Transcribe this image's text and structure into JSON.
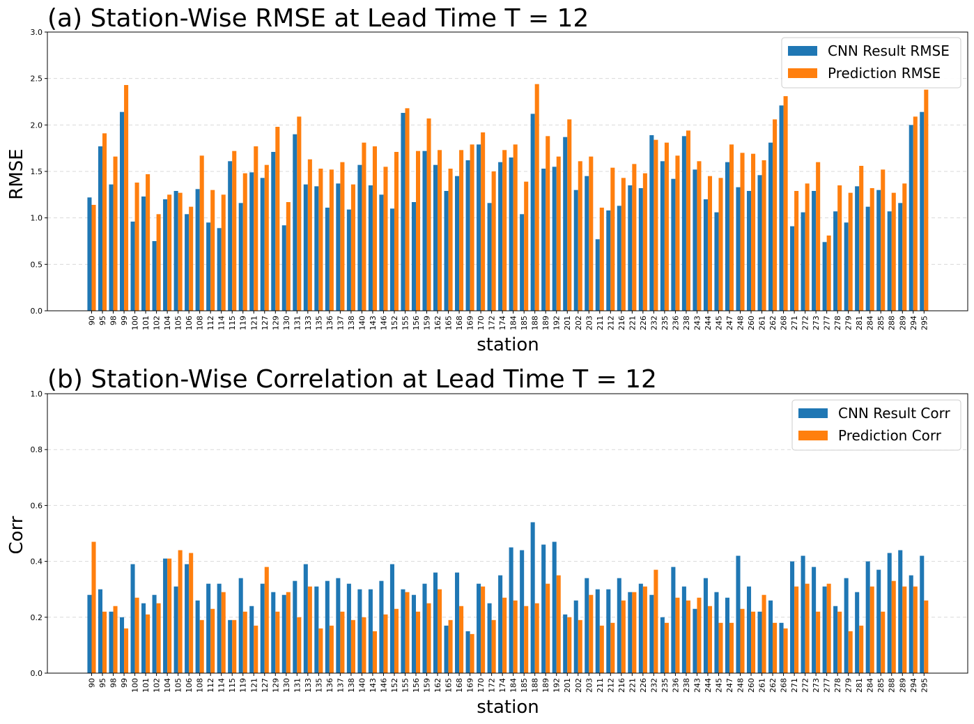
{
  "colors": {
    "cnn": "#1f77b4",
    "pred": "#ff7f0e",
    "grid": "#d9d9d9"
  },
  "chart_data": [
    {
      "type": "bar",
      "title": "(a) Station-Wise RMSE at Lead Time T = 12",
      "xlabel": "station",
      "ylabel": "RMSE",
      "ylim": [
        0,
        3.0
      ],
      "yticks": [
        "0.0",
        "0.5",
        "1.0",
        "1.5",
        "2.0",
        "2.5",
        "3.0"
      ],
      "grid": "y dashed",
      "legend_position": "top-right",
      "categories": [
        "90",
        "95",
        "98",
        "99",
        "100",
        "101",
        "102",
        "104",
        "105",
        "106",
        "108",
        "112",
        "114",
        "115",
        "119",
        "121",
        "127",
        "129",
        "130",
        "131",
        "133",
        "135",
        "136",
        "137",
        "138",
        "140",
        "143",
        "146",
        "152",
        "155",
        "156",
        "159",
        "162",
        "165",
        "168",
        "169",
        "170",
        "172",
        "174",
        "184",
        "185",
        "188",
        "189",
        "192",
        "201",
        "202",
        "203",
        "211",
        "212",
        "216",
        "221",
        "226",
        "232",
        "235",
        "236",
        "238",
        "243",
        "244",
        "245",
        "247",
        "248",
        "260",
        "261",
        "262",
        "268",
        "271",
        "272",
        "273",
        "277",
        "278",
        "279",
        "281",
        "284",
        "285",
        "288",
        "289",
        "294",
        "295"
      ],
      "series": [
        {
          "name": "CNN Result RMSE",
          "values": [
            1.22,
            1.77,
            1.36,
            2.14,
            0.96,
            1.23,
            0.75,
            1.2,
            1.29,
            1.04,
            1.31,
            0.95,
            0.89,
            1.61,
            1.16,
            1.49,
            1.43,
            1.71,
            0.92,
            1.9,
            1.36,
            1.34,
            1.11,
            1.37,
            1.09,
            1.57,
            1.35,
            1.25,
            1.1,
            2.13,
            1.17,
            1.72,
            1.57,
            1.29,
            1.45,
            1.62,
            1.79,
            1.16,
            1.6,
            1.65,
            1.04,
            2.12,
            1.53,
            1.55,
            1.87,
            1.3,
            1.45,
            0.77,
            1.08,
            1.13,
            1.35,
            1.32,
            1.89,
            1.61,
            1.42,
            1.88,
            1.52,
            1.2,
            1.06,
            1.6,
            1.33,
            1.29,
            1.46,
            1.81,
            2.21,
            0.91,
            1.06,
            1.29,
            0.74,
            1.07,
            0.95,
            1.34,
            1.12,
            1.3,
            1.07,
            1.16,
            2.0,
            2.14
          ]
        },
        {
          "name": "Prediction RMSE",
          "values": [
            1.14,
            1.91,
            1.66,
            2.43,
            1.38,
            1.47,
            1.04,
            1.25,
            1.27,
            1.12,
            1.67,
            1.3,
            1.25,
            1.72,
            1.48,
            1.77,
            1.57,
            1.98,
            1.17,
            2.09,
            1.63,
            1.53,
            1.52,
            1.6,
            1.36,
            1.81,
            1.77,
            1.55,
            1.71,
            2.18,
            1.72,
            2.07,
            1.73,
            1.53,
            1.73,
            1.79,
            1.92,
            1.5,
            1.73,
            1.79,
            1.39,
            2.44,
            1.88,
            1.66,
            2.06,
            1.61,
            1.66,
            1.11,
            1.54,
            1.43,
            1.58,
            1.48,
            1.84,
            1.81,
            1.67,
            1.94,
            1.61,
            1.45,
            1.43,
            1.79,
            1.7,
            1.69,
            1.62,
            2.06,
            2.31,
            1.29,
            1.37,
            1.6,
            0.81,
            1.35,
            1.27,
            1.56,
            1.32,
            1.52,
            1.27,
            1.37,
            2.09,
            2.38
          ]
        }
      ]
    },
    {
      "type": "bar",
      "title": "(b) Station-Wise Correlation at Lead Time T = 12",
      "xlabel": "station",
      "ylabel": "Corr",
      "ylim": [
        0,
        1.0
      ],
      "yticks": [
        "0.0",
        "0.2",
        "0.4",
        "0.6",
        "0.8",
        "1.0"
      ],
      "grid": "y dashed",
      "legend_position": "top-right",
      "categories": [
        "90",
        "95",
        "98",
        "99",
        "100",
        "101",
        "102",
        "104",
        "105",
        "106",
        "108",
        "112",
        "114",
        "115",
        "119",
        "121",
        "127",
        "129",
        "130",
        "131",
        "133",
        "135",
        "136",
        "137",
        "138",
        "140",
        "143",
        "146",
        "152",
        "155",
        "156",
        "159",
        "162",
        "165",
        "168",
        "169",
        "170",
        "172",
        "174",
        "184",
        "185",
        "188",
        "189",
        "192",
        "201",
        "202",
        "203",
        "211",
        "212",
        "216",
        "221",
        "226",
        "232",
        "235",
        "236",
        "238",
        "243",
        "244",
        "245",
        "247",
        "248",
        "260",
        "261",
        "262",
        "268",
        "271",
        "272",
        "273",
        "277",
        "278",
        "279",
        "281",
        "284",
        "285",
        "288",
        "289",
        "294",
        "295"
      ],
      "series": [
        {
          "name": "CNN Result Corr",
          "values": [
            0.28,
            0.3,
            0.22,
            0.2,
            0.39,
            0.25,
            0.28,
            0.41,
            0.31,
            0.39,
            0.26,
            0.32,
            0.32,
            0.19,
            0.34,
            0.24,
            0.32,
            0.29,
            0.28,
            0.33,
            0.39,
            0.31,
            0.33,
            0.34,
            0.32,
            0.3,
            0.3,
            0.33,
            0.39,
            0.3,
            0.28,
            0.32,
            0.36,
            0.17,
            0.36,
            0.15,
            0.32,
            0.25,
            0.35,
            0.45,
            0.44,
            0.54,
            0.46,
            0.47,
            0.21,
            0.26,
            0.34,
            0.3,
            0.3,
            0.34,
            0.29,
            0.32,
            0.28,
            0.2,
            0.38,
            0.31,
            0.23,
            0.34,
            0.29,
            0.27,
            0.42,
            0.31,
            0.22,
            0.26,
            0.18,
            0.4,
            0.42,
            0.38,
            0.31,
            0.24,
            0.34,
            0.29,
            0.4,
            0.37,
            0.43,
            0.44,
            0.35,
            0.42
          ]
        },
        {
          "name": "Prediction Corr",
          "values": [
            0.47,
            0.22,
            0.24,
            0.16,
            0.27,
            0.21,
            0.25,
            0.41,
            0.44,
            0.43,
            0.19,
            0.23,
            0.29,
            0.19,
            0.22,
            0.17,
            0.38,
            0.22,
            0.29,
            0.2,
            0.31,
            0.16,
            0.17,
            0.22,
            0.19,
            0.2,
            0.15,
            0.21,
            0.23,
            0.29,
            0.22,
            0.25,
            0.3,
            0.19,
            0.24,
            0.14,
            0.31,
            0.19,
            0.27,
            0.26,
            0.24,
            0.25,
            0.32,
            0.35,
            0.2,
            0.19,
            0.28,
            0.17,
            0.18,
            0.26,
            0.29,
            0.31,
            0.37,
            0.18,
            0.27,
            0.26,
            0.27,
            0.24,
            0.18,
            0.18,
            0.23,
            0.22,
            0.28,
            0.18,
            0.16,
            0.31,
            0.32,
            0.22,
            0.32,
            0.22,
            0.15,
            0.17,
            0.31,
            0.22,
            0.33,
            0.31,
            0.31,
            0.26
          ]
        }
      ]
    }
  ]
}
